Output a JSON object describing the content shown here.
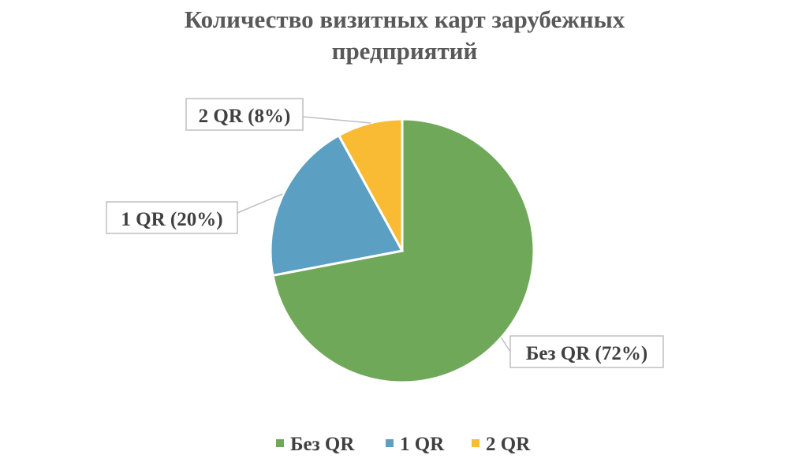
{
  "chart_data": {
    "type": "pie",
    "title": "Количество визитных карт зарубежных предприятий",
    "title_lines": [
      "Количество визитных карт зарубежных",
      "предприятий"
    ],
    "slices": [
      {
        "name": "Без QR",
        "value": 72,
        "label": "Без QR (72%)",
        "color": "#70A85A"
      },
      {
        "name": "1 QR",
        "value": 20,
        "label": "1 QR (20%)",
        "color": "#5B9FC3"
      },
      {
        "name": "2 QR",
        "value": 8,
        "label": "2 QR (8%)",
        "color": "#F9BB33"
      }
    ],
    "legend_position": "bottom",
    "start_angle": "top, clockwise"
  }
}
